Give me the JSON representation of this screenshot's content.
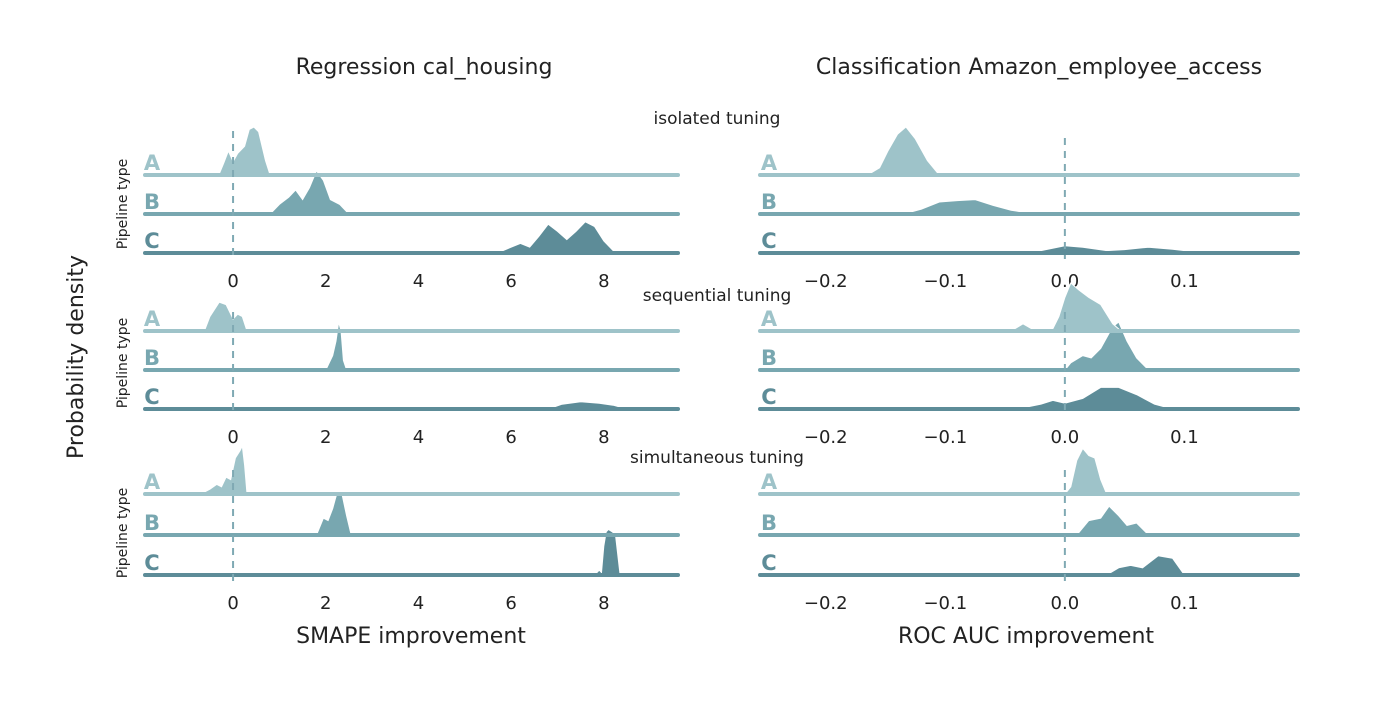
{
  "figure": {
    "ylabel": "Probability density",
    "pipeline_axis_label": "Pipeline type",
    "row_labels": [
      "isolated tuning",
      "sequential tuning",
      "simultaneous tuning"
    ]
  },
  "colors": {
    "A": "#9ec3c9",
    "B": "#78a7b0",
    "C": "#5d8c98",
    "zero_line": "#7fa9b3",
    "text": "#222222"
  },
  "chart_data": [
    {
      "type": "ridgeline",
      "title": "Regression cal_housing",
      "xlabel": "SMAPE improvement",
      "xlim": [
        -1.9,
        9.6
      ],
      "xticks": [
        0,
        2,
        4,
        6,
        8
      ],
      "xtick_labels": [
        "0",
        "2",
        "4",
        "6",
        "8"
      ],
      "zero_line": 0,
      "panels": [
        {
          "name": "isolated tuning",
          "series": [
            {
              "name": "A",
              "points": [
                [
                  -0.6,
                  0
                ],
                [
                  -0.3,
                  0.02
                ],
                [
                  -0.2,
                  0.25
                ],
                [
                  -0.1,
                  0.5
                ],
                [
                  0.0,
                  0.28
                ],
                [
                  0.1,
                  0.45
                ],
                [
                  0.25,
                  0.6
                ],
                [
                  0.35,
                  0.95
                ],
                [
                  0.45,
                  1.0
                ],
                [
                  0.55,
                  0.9
                ],
                [
                  0.7,
                  0.3
                ],
                [
                  0.8,
                  0
                ]
              ]
            },
            {
              "name": "B",
              "points": [
                [
                  0.8,
                  0
                ],
                [
                  1.0,
                  0.2
                ],
                [
                  1.2,
                  0.35
                ],
                [
                  1.35,
                  0.5
                ],
                [
                  1.5,
                  0.3
                ],
                [
                  1.65,
                  0.55
                ],
                [
                  1.8,
                  0.9
                ],
                [
                  1.95,
                  0.7
                ],
                [
                  2.1,
                  0.3
                ],
                [
                  2.3,
                  0.2
                ],
                [
                  2.5,
                  0
                ]
              ]
            },
            {
              "name": "C",
              "points": [
                [
                  5.7,
                  0
                ],
                [
                  6.0,
                  0.12
                ],
                [
                  6.2,
                  0.2
                ],
                [
                  6.4,
                  0.12
                ],
                [
                  6.6,
                  0.35
                ],
                [
                  6.8,
                  0.6
                ],
                [
                  7.0,
                  0.45
                ],
                [
                  7.2,
                  0.28
                ],
                [
                  7.4,
                  0.45
                ],
                [
                  7.6,
                  0.65
                ],
                [
                  7.8,
                  0.55
                ],
                [
                  8.0,
                  0.25
                ],
                [
                  8.2,
                  0.05
                ],
                [
                  8.4,
                  0
                ]
              ]
            }
          ]
        },
        {
          "name": "sequential tuning",
          "series": [
            {
              "name": "A",
              "points": [
                [
                  -0.8,
                  0
                ],
                [
                  -0.6,
                  0.05
                ],
                [
                  -0.5,
                  0.3
                ],
                [
                  -0.3,
                  0.6
                ],
                [
                  -0.15,
                  0.55
                ],
                [
                  0.0,
                  0.25
                ],
                [
                  0.1,
                  0.35
                ],
                [
                  0.2,
                  0.3
                ],
                [
                  0.3,
                  0
                ]
              ]
            },
            {
              "name": "B",
              "points": [
                [
                  2.0,
                  0
                ],
                [
                  2.15,
                  0.3
                ],
                [
                  2.22,
                  0.6
                ],
                [
                  2.28,
                  1.0
                ],
                [
                  2.33,
                  0.8
                ],
                [
                  2.38,
                  0.2
                ],
                [
                  2.45,
                  0
                ]
              ]
            },
            {
              "name": "C",
              "points": [
                [
                  6.8,
                  0
                ],
                [
                  7.1,
                  0.1
                ],
                [
                  7.5,
                  0.15
                ],
                [
                  7.9,
                  0.12
                ],
                [
                  8.2,
                  0.08
                ],
                [
                  8.5,
                  0
                ]
              ]
            }
          ]
        },
        {
          "name": "simultaneous tuning",
          "series": [
            {
              "name": "A",
              "points": [
                [
                  -0.7,
                  0
                ],
                [
                  -0.5,
                  0.1
                ],
                [
                  -0.35,
                  0.2
                ],
                [
                  -0.25,
                  0.15
                ],
                [
                  -0.15,
                  0.35
                ],
                [
                  -0.05,
                  0.3
                ],
                [
                  0.05,
                  0.75
                ],
                [
                  0.15,
                  0.9
                ],
                [
                  0.2,
                  1.0
                ],
                [
                  0.25,
                  0.6
                ],
                [
                  0.3,
                  0
                ]
              ]
            },
            {
              "name": "B",
              "points": [
                [
                  1.8,
                  0
                ],
                [
                  1.95,
                  0.35
                ],
                [
                  2.05,
                  0.3
                ],
                [
                  2.15,
                  0.55
                ],
                [
                  2.25,
                  0.9
                ],
                [
                  2.35,
                  0.85
                ],
                [
                  2.45,
                  0.4
                ],
                [
                  2.55,
                  0
                ]
              ]
            },
            {
              "name": "C",
              "points": [
                [
                  7.8,
                  0
                ],
                [
                  7.9,
                  0.1
                ],
                [
                  7.95,
                  0.05
                ],
                [
                  8.0,
                  0.6
                ],
                [
                  8.05,
                  0.9
                ],
                [
                  8.1,
                  0.95
                ],
                [
                  8.18,
                  0.9
                ],
                [
                  8.25,
                  0.85
                ],
                [
                  8.35,
                  0
                ]
              ]
            }
          ]
        }
      ]
    },
    {
      "type": "ridgeline",
      "title": "Classification Amazon_employee_access",
      "xlabel": "ROC AUC improvement",
      "xlim": [
        -0.255,
        0.195
      ],
      "xticks": [
        -0.2,
        -0.1,
        0.0,
        0.1
      ],
      "xtick_labels": [
        "−0.2",
        "−0.1",
        "0.0",
        "0.1"
      ],
      "zero_line": 0,
      "panels": [
        {
          "name": "isolated tuning",
          "series": [
            {
              "name": "A",
              "points": [
                [
                  -0.165,
                  0
                ],
                [
                  -0.155,
                  0.15
                ],
                [
                  -0.148,
                  0.5
                ],
                [
                  -0.14,
                  0.85
                ],
                [
                  -0.133,
                  1.0
                ],
                [
                  -0.125,
                  0.75
                ],
                [
                  -0.115,
                  0.3
                ],
                [
                  -0.105,
                  0
                ]
              ]
            },
            {
              "name": "B",
              "points": [
                [
                  -0.135,
                  0
                ],
                [
                  -0.12,
                  0.1
                ],
                [
                  -0.105,
                  0.25
                ],
                [
                  -0.09,
                  0.28
                ],
                [
                  -0.075,
                  0.3
                ],
                [
                  -0.06,
                  0.18
                ],
                [
                  -0.045,
                  0.08
                ],
                [
                  -0.035,
                  0.04
                ],
                [
                  -0.025,
                  0
                ]
              ]
            },
            {
              "name": "C",
              "points": [
                [
                  -0.045,
                  0
                ],
                [
                  -0.02,
                  0.05
                ],
                [
                  0.0,
                  0.15
                ],
                [
                  0.015,
                  0.12
                ],
                [
                  0.035,
                  0.05
                ],
                [
                  0.05,
                  0.07
                ],
                [
                  0.07,
                  0.12
                ],
                [
                  0.09,
                  0.08
                ],
                [
                  0.11,
                  0.02
                ],
                [
                  0.125,
                  0
                ]
              ]
            }
          ]
        },
        {
          "name": "sequential tuning",
          "series": [
            {
              "name": "A",
              "points": [
                [
                  -0.045,
                  0
                ],
                [
                  -0.035,
                  0.15
                ],
                [
                  -0.028,
                  0.05
                ],
                [
                  -0.01,
                  0.05
                ],
                [
                  -0.005,
                  0.3
                ],
                [
                  0.0,
                  0.7
                ],
                [
                  0.005,
                  1.0
                ],
                [
                  0.012,
                  0.85
                ],
                [
                  0.02,
                  0.7
                ],
                [
                  0.03,
                  0.55
                ],
                [
                  0.04,
                  0.15
                ],
                [
                  0.047,
                  0
                ]
              ]
            },
            {
              "name": "B",
              "points": [
                [
                  0.0,
                  0
                ],
                [
                  0.005,
                  0.15
                ],
                [
                  0.015,
                  0.3
                ],
                [
                  0.022,
                  0.25
                ],
                [
                  0.03,
                  0.45
                ],
                [
                  0.04,
                  0.9
                ],
                [
                  0.045,
                  1.0
                ],
                [
                  0.052,
                  0.6
                ],
                [
                  0.06,
                  0.25
                ],
                [
                  0.07,
                  0
                ]
              ]
            },
            {
              "name": "C",
              "points": [
                [
                  -0.04,
                  0
                ],
                [
                  -0.02,
                  0.1
                ],
                [
                  -0.01,
                  0.18
                ],
                [
                  0.0,
                  0.12
                ],
                [
                  0.015,
                  0.22
                ],
                [
                  0.03,
                  0.45
                ],
                [
                  0.045,
                  0.45
                ],
                [
                  0.06,
                  0.3
                ],
                [
                  0.075,
                  0.1
                ],
                [
                  0.09,
                  0
                ]
              ]
            }
          ]
        },
        {
          "name": "simultaneous tuning",
          "series": [
            {
              "name": "A",
              "points": [
                [
                  0.0,
                  0
                ],
                [
                  0.005,
                  0.15
                ],
                [
                  0.01,
                  0.7
                ],
                [
                  0.015,
                  0.95
                ],
                [
                  0.02,
                  0.8
                ],
                [
                  0.025,
                  0.75
                ],
                [
                  0.03,
                  0.3
                ],
                [
                  0.035,
                  0
                ]
              ]
            },
            {
              "name": "B",
              "points": [
                [
                  0.01,
                  0
                ],
                [
                  0.02,
                  0.3
                ],
                [
                  0.03,
                  0.35
                ],
                [
                  0.037,
                  0.6
                ],
                [
                  0.045,
                  0.4
                ],
                [
                  0.052,
                  0.2
                ],
                [
                  0.06,
                  0.25
                ],
                [
                  0.07,
                  0
                ]
              ]
            },
            {
              "name": "C",
              "points": [
                [
                  0.035,
                  0
                ],
                [
                  0.045,
                  0.15
                ],
                [
                  0.055,
                  0.2
                ],
                [
                  0.065,
                  0.15
                ],
                [
                  0.078,
                  0.4
                ],
                [
                  0.09,
                  0.35
                ],
                [
                  0.1,
                  0
                ]
              ]
            }
          ]
        }
      ]
    }
  ]
}
